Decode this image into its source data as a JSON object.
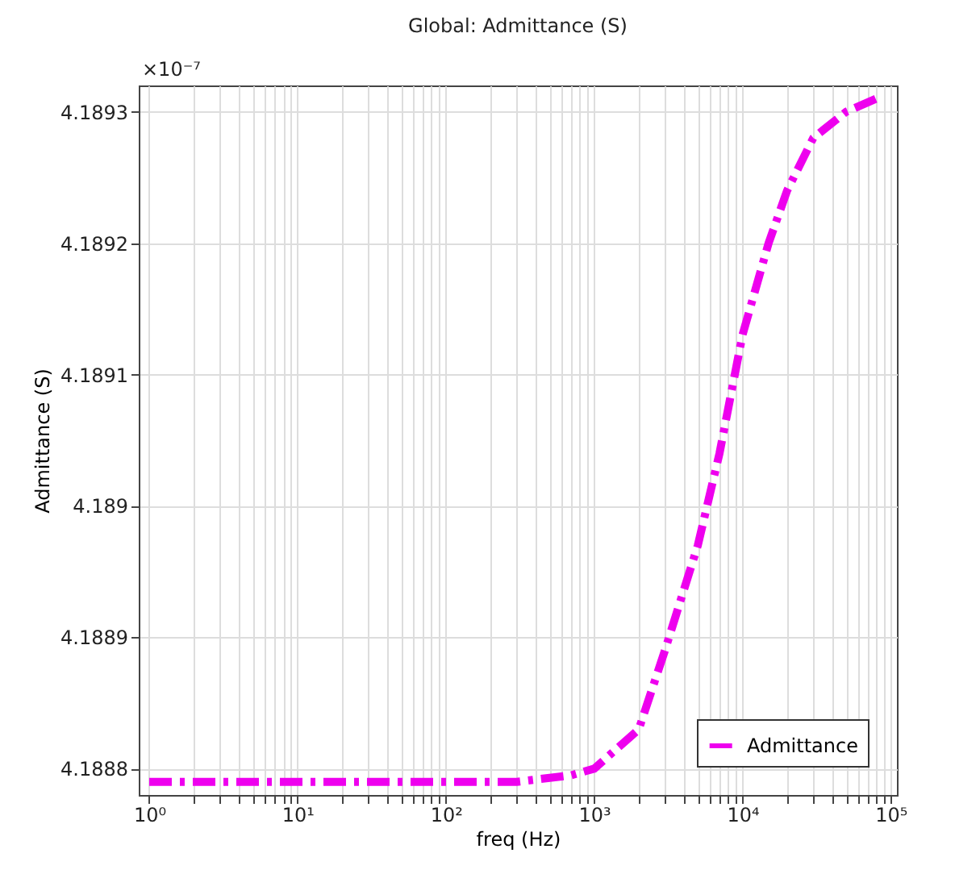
{
  "chart_data": {
    "type": "line",
    "title": "Global: Admittance (S)",
    "xlabel": "freq (Hz)",
    "ylabel": "Admittance (S)",
    "annotations": [
      "×10⁻⁷"
    ],
    "x": [
      1,
      10,
      100,
      300,
      700,
      1000,
      2000,
      3000,
      5000,
      7000,
      10000,
      15000,
      20000,
      30000,
      50000,
      80000
    ],
    "series": [
      {
        "name": "Admittance",
        "color": "#ee00ee",
        "values": [
          4.18879,
          4.18879,
          4.18879,
          4.18879,
          4.188795,
          4.1888,
          4.18883,
          4.18889,
          4.18897,
          4.18904,
          4.18913,
          4.1892,
          4.18924,
          4.18928,
          4.1893,
          4.18931
        ]
      }
    ],
    "log": "x",
    "xlim": [
      0.85,
      110000
    ],
    "xticks": [
      {
        "value": 1,
        "label": "10⁰"
      },
      {
        "value": 2,
        "label": null
      },
      {
        "value": 3,
        "label": null
      },
      {
        "value": 4,
        "label": null
      },
      {
        "value": 5,
        "label": null
      },
      {
        "value": 6,
        "label": null
      },
      {
        "value": 7,
        "label": null
      },
      {
        "value": 8,
        "label": null
      },
      {
        "value": 9,
        "label": null
      },
      {
        "value": 10,
        "label": "10¹"
      },
      {
        "value": 20,
        "label": null
      },
      {
        "value": 30,
        "label": null
      },
      {
        "value": 40,
        "label": null
      },
      {
        "value": 50,
        "label": null
      },
      {
        "value": 60,
        "label": null
      },
      {
        "value": 70,
        "label": null
      },
      {
        "value": 80,
        "label": null
      },
      {
        "value": 90,
        "label": null
      },
      {
        "value": 100,
        "label": "10²"
      },
      {
        "value": 200,
        "label": null
      },
      {
        "value": 300,
        "label": null
      },
      {
        "value": 400,
        "label": null
      },
      {
        "value": 500,
        "label": null
      },
      {
        "value": 600,
        "label": null
      },
      {
        "value": 700,
        "label": null
      },
      {
        "value": 800,
        "label": null
      },
      {
        "value": 900,
        "label": null
      },
      {
        "value": 1000,
        "label": "10³"
      },
      {
        "value": 2000,
        "label": null
      },
      {
        "value": 3000,
        "label": null
      },
      {
        "value": 4000,
        "label": null
      },
      {
        "value": 5000,
        "label": null
      },
      {
        "value": 6000,
        "label": null
      },
      {
        "value": 7000,
        "label": null
      },
      {
        "value": 8000,
        "label": null
      },
      {
        "value": 9000,
        "label": null
      },
      {
        "value": 10000,
        "label": "10⁴"
      },
      {
        "value": 20000,
        "label": null
      },
      {
        "value": 30000,
        "label": null
      },
      {
        "value": 40000,
        "label": null
      },
      {
        "value": 50000,
        "label": null
      },
      {
        "value": 60000,
        "label": null
      },
      {
        "value": 70000,
        "label": null
      },
      {
        "value": 80000,
        "label": null
      },
      {
        "value": 90000,
        "label": null
      },
      {
        "value": 100000,
        "label": "10⁵"
      }
    ],
    "ylim": [
      4.18878,
      4.18932
    ],
    "yticks": [
      4.1888,
      4.1889,
      4.189,
      4.1891,
      4.1892,
      4.1893
    ],
    "grid": true,
    "legend": "bottom right",
    "marker": "none",
    "line_style": "dashed"
  }
}
